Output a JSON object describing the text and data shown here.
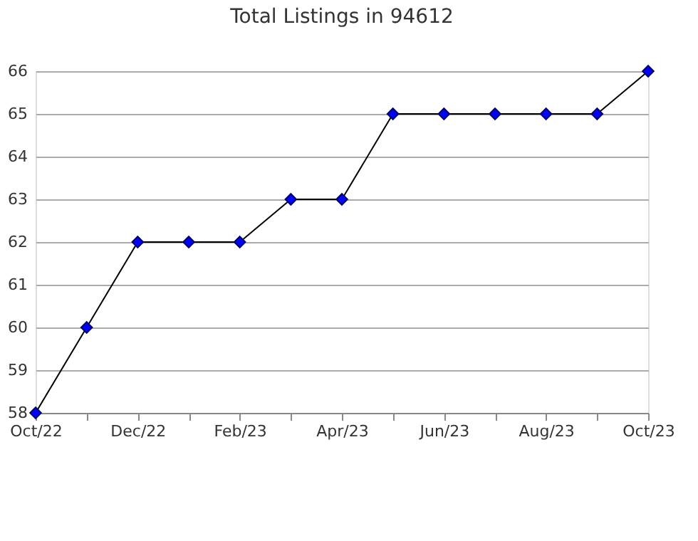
{
  "chart_data": {
    "type": "line",
    "title": "Total Listings in 94612",
    "categories": [
      "Oct/22",
      null,
      "Dec/22",
      null,
      "Feb/23",
      null,
      "Apr/23",
      null,
      "Jun/23",
      null,
      "Aug/23",
      null,
      "Oct/23"
    ],
    "series": [
      {
        "color": "#0000ff",
        "values": [
          58,
          60,
          62,
          62,
          62,
          63,
          63,
          65,
          65,
          65,
          65,
          65,
          66
        ]
      }
    ],
    "ylim": [
      58,
      66
    ],
    "yticks": [
      58,
      59,
      60,
      61,
      62,
      63,
      64,
      65,
      66
    ],
    "grid": "y",
    "marker": "diamond",
    "line_style": "solid"
  }
}
